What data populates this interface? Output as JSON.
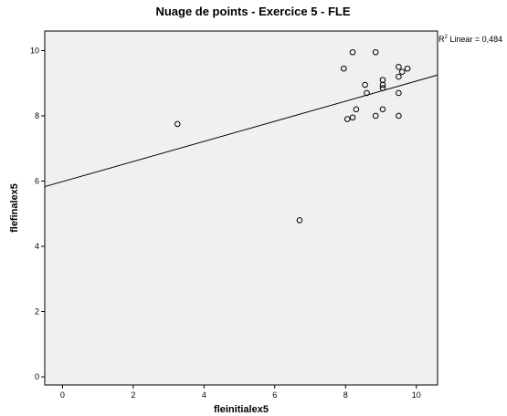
{
  "chart_data": {
    "type": "scatter",
    "title": "Nuage de points - Exercice 5 - FLE",
    "xlabel": "fleinitialex5",
    "ylabel": "flefinalex5",
    "xlim": [
      -0.5,
      10.6
    ],
    "ylim": [
      -0.25,
      10.6
    ],
    "x_ticks": [
      0,
      2,
      4,
      6,
      8,
      10
    ],
    "y_ticks": [
      0,
      2,
      4,
      6,
      8,
      10
    ],
    "x_tick_labels": [
      "0",
      "2",
      "4",
      "6",
      "8",
      "10"
    ],
    "y_tick_labels": [
      "0",
      "2",
      "4",
      "6",
      "8",
      "10"
    ],
    "grid": false,
    "background_color": "#f0f0f0",
    "points": [
      {
        "x": 3.25,
        "y": 7.75
      },
      {
        "x": 6.7,
        "y": 4.8
      },
      {
        "x": 7.95,
        "y": 9.45
      },
      {
        "x": 8.2,
        "y": 9.95
      },
      {
        "x": 8.85,
        "y": 9.95
      },
      {
        "x": 8.55,
        "y": 8.95
      },
      {
        "x": 8.6,
        "y": 8.7
      },
      {
        "x": 9.05,
        "y": 9.1
      },
      {
        "x": 9.05,
        "y": 8.95
      },
      {
        "x": 9.05,
        "y": 8.85
      },
      {
        "x": 9.5,
        "y": 9.5
      },
      {
        "x": 9.6,
        "y": 9.35
      },
      {
        "x": 9.75,
        "y": 9.45
      },
      {
        "x": 9.5,
        "y": 9.2
      },
      {
        "x": 9.5,
        "y": 8.7
      },
      {
        "x": 8.05,
        "y": 7.9
      },
      {
        "x": 8.2,
        "y": 7.95
      },
      {
        "x": 8.3,
        "y": 8.2
      },
      {
        "x": 8.85,
        "y": 8.0
      },
      {
        "x": 9.05,
        "y": 8.2
      },
      {
        "x": 9.5,
        "y": 8.0
      }
    ],
    "fit_line": {
      "type": "linear",
      "x": [
        -0.5,
        10.6
      ],
      "y": [
        5.83,
        9.25
      ],
      "label_prefix": "R",
      "label_sup": "2",
      "label_suffix": " Linear = 0,484"
    }
  }
}
